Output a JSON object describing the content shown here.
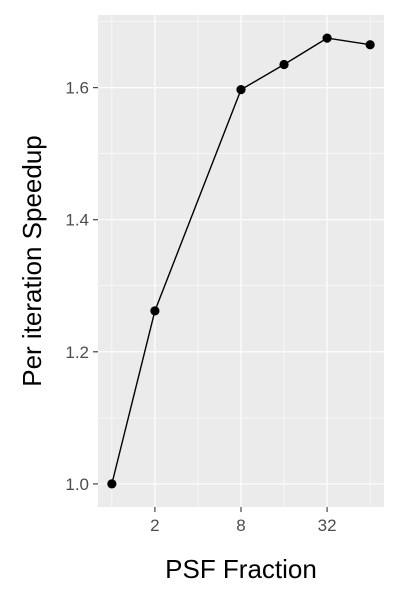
{
  "chart_data": {
    "type": "line",
    "xlabel": "PSF Fraction",
    "ylabel": "Per iteration Speedup",
    "x_scale": "log2",
    "x": [
      1,
      2,
      8,
      16,
      32,
      64
    ],
    "y": [
      1.0,
      1.262,
      1.597,
      1.635,
      1.675,
      1.665
    ],
    "xlim": [
      0.8,
      80
    ],
    "ylim": [
      0.965,
      1.71
    ],
    "x_ticks": [
      2,
      8,
      32
    ],
    "x_tick_labels": [
      "2",
      "8",
      "32"
    ],
    "y_ticks": [
      1.0,
      1.2,
      1.4,
      1.6
    ],
    "y_tick_labels": [
      "1.0",
      "1.2",
      "1.4",
      "1.6"
    ],
    "grid": true,
    "legend": "none",
    "colors": {
      "panel": "#ebebeb",
      "grid": "#ffffff",
      "series": "#000000"
    }
  }
}
